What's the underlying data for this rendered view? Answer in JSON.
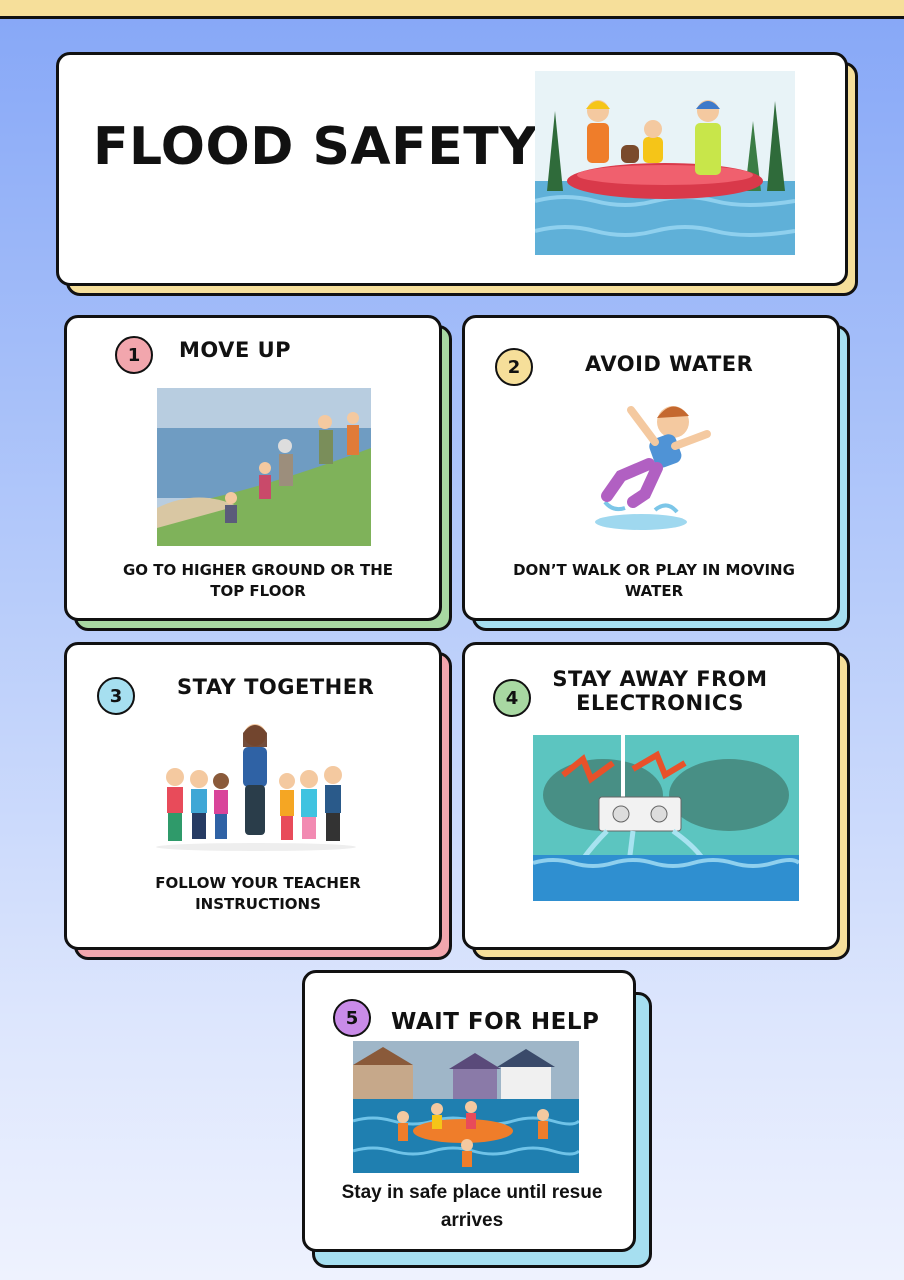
{
  "header": {
    "title": "FLOOD SAFETY",
    "image_icon": "rescue-boat-illustration"
  },
  "steps": [
    {
      "number": "1",
      "title": "MOVE UP",
      "caption": "GO TO HIGHER GROUND OR THE TOP FLOOR",
      "badge_color": "#f2a6ad",
      "shadow_color": "#a8d8a2"
    },
    {
      "number": "2",
      "title": "AVOID WATER",
      "caption": "DON’T WALK OR PLAY IN MOVING WATER",
      "badge_color": "#f6df9a",
      "shadow_color": "#a6dff0"
    },
    {
      "number": "3",
      "title": "STAY TOGETHER",
      "caption": "FOLLOW YOUR TEACHER INSTRUCTIONS",
      "badge_color": "#a6dff0",
      "shadow_color": "#f2a6ad"
    },
    {
      "number": "4",
      "title": "STAY AWAY FROM ELECTRONICS",
      "caption": "",
      "badge_color": "#a8d8a2",
      "shadow_color": "#f6df9a"
    },
    {
      "number": "5",
      "title": "WAIT FOR HELP",
      "caption": "Stay in safe place until resue arrives",
      "badge_color": "#c98be8",
      "shadow_color": "#a6dff0"
    }
  ],
  "colors": {
    "accent_yellow": "#f6df9a",
    "background_top": "#86a7f7",
    "water": "#3fa7d6"
  }
}
